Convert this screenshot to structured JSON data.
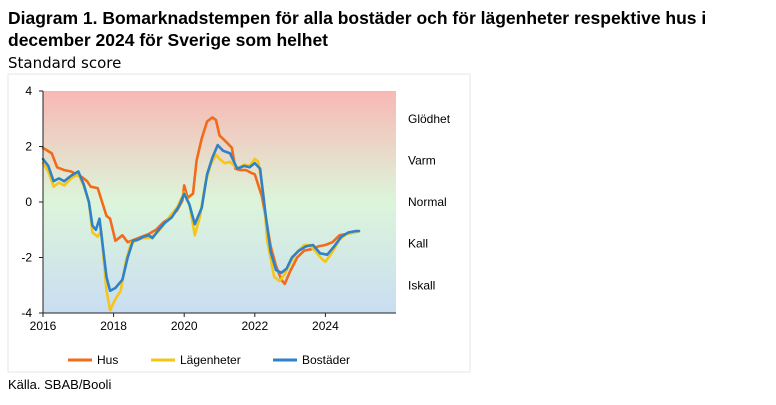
{
  "title": "Diagram 1. Bomarknadstempen för alla bostäder och för lägenheter respektive hus i december 2024 för Sverige som helhet",
  "subtitle": "Standard score",
  "source": "Källa. SBAB/Booli",
  "colors": {
    "hus": "#f26a1b",
    "lagenheter": "#f5c518",
    "bostader": "#2f82c8",
    "zone_hot": "#f8b8b4",
    "zone_normal": "#dcf5da",
    "zone_cold": "#c9ddf2",
    "axis": "#222222",
    "frame": "#e6e6e6"
  },
  "chart_data": {
    "type": "line",
    "title": "",
    "xlabel": "",
    "ylabel": "Standard score",
    "xlim": [
      2016,
      2026
    ],
    "ylim": [
      -4,
      4
    ],
    "x_ticks": [
      2016,
      2018,
      2020,
      2022,
      2024
    ],
    "x_tick_labels": [
      "2016",
      "2018",
      "2020",
      "2022",
      "2024"
    ],
    "y_ticks": [
      -4,
      -2,
      0,
      2,
      4
    ],
    "y_tick_labels": [
      "-4",
      "-2",
      "0",
      "2",
      "4"
    ],
    "grid": false,
    "background": "vertical gradient: red (hot) at top, green (normal) in middle, blue (cold) at bottom",
    "zone_labels": [
      {
        "label": "Glödhet",
        "y": 3
      },
      {
        "label": "Varm",
        "y": 1.5
      },
      {
        "label": "Normal",
        "y": 0
      },
      {
        "label": "Kall",
        "y": -1.5
      },
      {
        "label": "Iskall",
        "y": -3
      }
    ],
    "legend_position": "bottom",
    "series": [
      {
        "name": "Hus",
        "color_key": "hus",
        "points": [
          [
            2016.0,
            1.95
          ],
          [
            2016.25,
            1.75
          ],
          [
            2016.4,
            1.25
          ],
          [
            2016.6,
            1.15
          ],
          [
            2016.8,
            1.1
          ],
          [
            2017.0,
            0.95
          ],
          [
            2017.1,
            0.9
          ],
          [
            2017.25,
            0.75
          ],
          [
            2017.35,
            0.55
          ],
          [
            2017.55,
            0.5
          ],
          [
            2017.8,
            -0.5
          ],
          [
            2017.9,
            -0.6
          ],
          [
            2018.05,
            -1.4
          ],
          [
            2018.25,
            -1.2
          ],
          [
            2018.4,
            -1.45
          ],
          [
            2018.6,
            -1.35
          ],
          [
            2018.8,
            -1.25
          ],
          [
            2019.0,
            -1.15
          ],
          [
            2019.2,
            -1.0
          ],
          [
            2019.4,
            -0.75
          ],
          [
            2019.6,
            -0.55
          ],
          [
            2019.8,
            -0.3
          ],
          [
            2019.95,
            0.05
          ],
          [
            2020.0,
            0.6
          ],
          [
            2020.1,
            0.15
          ],
          [
            2020.25,
            0.3
          ],
          [
            2020.35,
            1.5
          ],
          [
            2020.5,
            2.3
          ],
          [
            2020.65,
            2.9
          ],
          [
            2020.8,
            3.05
          ],
          [
            2020.9,
            2.95
          ],
          [
            2021.0,
            2.4
          ],
          [
            2021.2,
            2.15
          ],
          [
            2021.35,
            1.95
          ],
          [
            2021.45,
            1.2
          ],
          [
            2021.6,
            1.15
          ],
          [
            2021.75,
            1.15
          ],
          [
            2021.9,
            1.05
          ],
          [
            2022.0,
            1.0
          ],
          [
            2022.2,
            0.2
          ],
          [
            2022.3,
            -0.5
          ],
          [
            2022.45,
            -1.6
          ],
          [
            2022.6,
            -2.3
          ],
          [
            2022.75,
            -2.8
          ],
          [
            2022.85,
            -2.95
          ],
          [
            2023.0,
            -2.5
          ],
          [
            2023.2,
            -2.0
          ],
          [
            2023.4,
            -1.75
          ],
          [
            2023.6,
            -1.7
          ],
          [
            2023.8,
            -1.6
          ],
          [
            2024.0,
            -1.55
          ],
          [
            2024.2,
            -1.45
          ],
          [
            2024.4,
            -1.2
          ],
          [
            2024.6,
            -1.15
          ],
          [
            2024.8,
            -1.1
          ],
          [
            2024.95,
            -1.05
          ]
        ]
      },
      {
        "name": "Lägenheter",
        "color_key": "lagenheter",
        "points": [
          [
            2016.0,
            1.4
          ],
          [
            2016.15,
            1.1
          ],
          [
            2016.3,
            0.55
          ],
          [
            2016.45,
            0.7
          ],
          [
            2016.6,
            0.6
          ],
          [
            2016.8,
            0.85
          ],
          [
            2017.0,
            1.0
          ],
          [
            2017.15,
            0.6
          ],
          [
            2017.3,
            0.0
          ],
          [
            2017.4,
            -1.1
          ],
          [
            2017.55,
            -1.25
          ],
          [
            2017.65,
            -1.05
          ],
          [
            2017.8,
            -3.2
          ],
          [
            2017.9,
            -3.9
          ],
          [
            2018.05,
            -3.5
          ],
          [
            2018.2,
            -3.2
          ],
          [
            2018.35,
            -2.1
          ],
          [
            2018.5,
            -1.45
          ],
          [
            2018.65,
            -1.4
          ],
          [
            2018.8,
            -1.3
          ],
          [
            2019.0,
            -1.3
          ],
          [
            2019.2,
            -1.15
          ],
          [
            2019.4,
            -0.85
          ],
          [
            2019.6,
            -0.5
          ],
          [
            2019.8,
            -0.2
          ],
          [
            2020.0,
            0.35
          ],
          [
            2020.15,
            -0.1
          ],
          [
            2020.3,
            -1.2
          ],
          [
            2020.45,
            -0.5
          ],
          [
            2020.6,
            0.7
          ],
          [
            2020.75,
            1.35
          ],
          [
            2020.9,
            1.7
          ],
          [
            2021.0,
            1.55
          ],
          [
            2021.15,
            1.4
          ],
          [
            2021.3,
            1.45
          ],
          [
            2021.5,
            1.2
          ],
          [
            2021.7,
            1.35
          ],
          [
            2021.85,
            1.3
          ],
          [
            2022.0,
            1.55
          ],
          [
            2022.1,
            1.45
          ],
          [
            2022.25,
            0.2
          ],
          [
            2022.35,
            -1.4
          ],
          [
            2022.55,
            -2.7
          ],
          [
            2022.7,
            -2.85
          ],
          [
            2022.85,
            -2.6
          ],
          [
            2023.0,
            -2.2
          ],
          [
            2023.2,
            -1.8
          ],
          [
            2023.4,
            -1.55
          ],
          [
            2023.55,
            -1.55
          ],
          [
            2023.7,
            -1.75
          ],
          [
            2023.9,
            -2.05
          ],
          [
            2024.0,
            -2.15
          ],
          [
            2024.2,
            -1.8
          ],
          [
            2024.4,
            -1.35
          ],
          [
            2024.6,
            -1.15
          ],
          [
            2024.8,
            -1.1
          ],
          [
            2024.95,
            -1.05
          ]
        ]
      },
      {
        "name": "Bostäder",
        "color_key": "bostader",
        "points": [
          [
            2016.0,
            1.55
          ],
          [
            2016.15,
            1.3
          ],
          [
            2016.3,
            0.75
          ],
          [
            2016.45,
            0.85
          ],
          [
            2016.6,
            0.75
          ],
          [
            2016.8,
            0.95
          ],
          [
            2017.0,
            1.1
          ],
          [
            2017.15,
            0.65
          ],
          [
            2017.3,
            0.0
          ],
          [
            2017.4,
            -0.85
          ],
          [
            2017.5,
            -1.0
          ],
          [
            2017.6,
            -0.6
          ],
          [
            2017.8,
            -2.7
          ],
          [
            2017.9,
            -3.2
          ],
          [
            2018.05,
            -3.1
          ],
          [
            2018.25,
            -2.8
          ],
          [
            2018.4,
            -2.0
          ],
          [
            2018.55,
            -1.4
          ],
          [
            2018.7,
            -1.35
          ],
          [
            2018.85,
            -1.25
          ],
          [
            2019.0,
            -1.2
          ],
          [
            2019.1,
            -1.3
          ],
          [
            2019.25,
            -1.05
          ],
          [
            2019.45,
            -0.75
          ],
          [
            2019.65,
            -0.55
          ],
          [
            2019.85,
            -0.15
          ],
          [
            2020.0,
            0.3
          ],
          [
            2020.15,
            -0.1
          ],
          [
            2020.3,
            -0.8
          ],
          [
            2020.5,
            -0.2
          ],
          [
            2020.65,
            1.0
          ],
          [
            2020.8,
            1.6
          ],
          [
            2020.95,
            2.05
          ],
          [
            2021.1,
            1.85
          ],
          [
            2021.3,
            1.75
          ],
          [
            2021.5,
            1.2
          ],
          [
            2021.7,
            1.3
          ],
          [
            2021.85,
            1.25
          ],
          [
            2022.0,
            1.4
          ],
          [
            2022.15,
            1.2
          ],
          [
            2022.3,
            -0.4
          ],
          [
            2022.45,
            -1.8
          ],
          [
            2022.6,
            -2.45
          ],
          [
            2022.75,
            -2.55
          ],
          [
            2022.9,
            -2.4
          ],
          [
            2023.05,
            -2.0
          ],
          [
            2023.25,
            -1.75
          ],
          [
            2023.45,
            -1.6
          ],
          [
            2023.65,
            -1.55
          ],
          [
            2023.85,
            -1.85
          ],
          [
            2024.05,
            -1.9
          ],
          [
            2024.25,
            -1.6
          ],
          [
            2024.45,
            -1.25
          ],
          [
            2024.65,
            -1.1
          ],
          [
            2024.85,
            -1.05
          ],
          [
            2024.95,
            -1.05
          ]
        ]
      }
    ]
  }
}
